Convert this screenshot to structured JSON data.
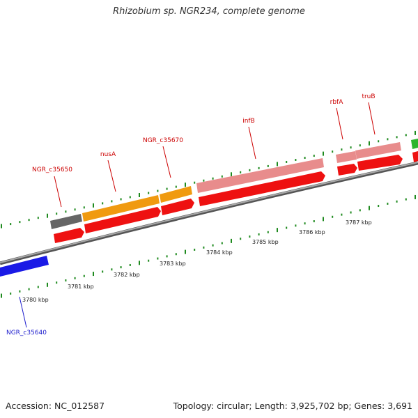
{
  "title": "Rhizobium sp. NGR234, complete genome",
  "footer": {
    "accession": "Accession: NC_012587",
    "summary": "Topology: circular; Length: 3,925,702 bp; Genes: 3,691"
  },
  "colors": {
    "gray_feature": "#666666",
    "orange_feature": "#f09a10",
    "pink_feature": "#e88c8c",
    "red_feature": "#ee1111",
    "blue_feature": "#1a1ae6",
    "tick": "#1e8a1e",
    "label_red": "#cc0000",
    "label_blue": "#1a1acc",
    "backbone": "#888888"
  },
  "scale_labels": [
    "3780 kbp",
    "3781 kbp",
    "3782 kbp",
    "3783 kbp",
    "3784 kbp",
    "3785 kbp",
    "3786 kbp",
    "3787 kbp"
  ],
  "gene_labels": [
    {
      "id": "NGR_c35650",
      "color": "red"
    },
    {
      "id": "nusA",
      "color": "red"
    },
    {
      "id": "NGR_c35670",
      "color": "red"
    },
    {
      "id": "infB",
      "color": "red"
    },
    {
      "id": "rbfA",
      "color": "red"
    },
    {
      "id": "truB",
      "color": "red"
    },
    {
      "id": "NGR_c35640",
      "color": "blue"
    }
  ]
}
